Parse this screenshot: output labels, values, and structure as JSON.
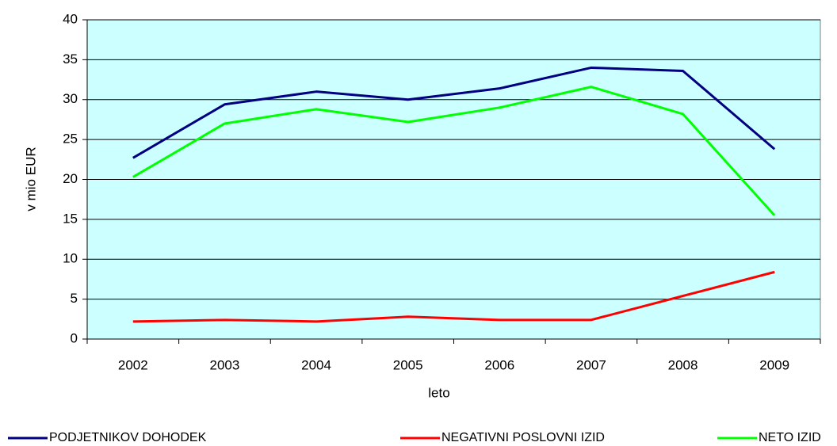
{
  "chart_data": {
    "type": "line",
    "x_label": "leto",
    "y_label": "v mio EUR",
    "categories": [
      "2002",
      "2003",
      "2004",
      "2005",
      "2006",
      "2007",
      "2008",
      "2009"
    ],
    "series": [
      {
        "name": "PODJETNIKOV DOHODEK",
        "color": "#000080",
        "values": [
          22.7,
          29.4,
          31.0,
          30.0,
          31.4,
          34.0,
          33.6,
          23.8
        ]
      },
      {
        "name": "NEGATIVNI POSLOVNI IZID",
        "color": "#ff0000",
        "values": [
          2.2,
          2.4,
          2.2,
          2.8,
          2.4,
          2.4,
          5.4,
          8.4
        ]
      },
      {
        "name": "NETO IZID",
        "color": "#00ff00",
        "values": [
          20.3,
          27.0,
          28.8,
          27.2,
          29.0,
          31.6,
          28.2,
          15.5
        ]
      }
    ],
    "ylim": [
      0,
      40
    ],
    "yticks": [
      0,
      5,
      10,
      15,
      20,
      25,
      30,
      35,
      40
    ],
    "grid": true,
    "plot_background": "#ccffff",
    "legend": "bottom"
  }
}
